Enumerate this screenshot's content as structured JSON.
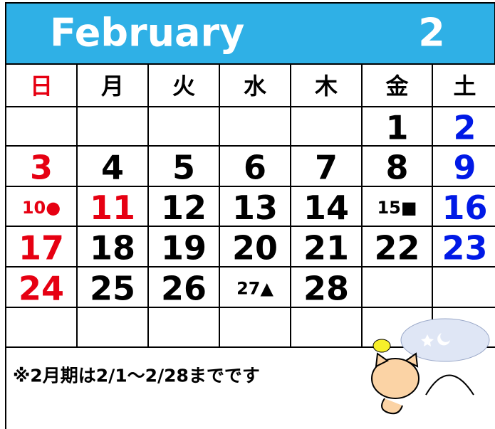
{
  "header": {
    "month": "February",
    "number": "2"
  },
  "weekdays": [
    {
      "text": "日",
      "color": "#e60012"
    },
    {
      "text": "月",
      "color": "#000000"
    },
    {
      "text": "火",
      "color": "#000000"
    },
    {
      "text": "水",
      "color": "#000000"
    },
    {
      "text": "木",
      "color": "#000000"
    },
    {
      "text": "金",
      "color": "#000000"
    },
    {
      "text": "土",
      "color": "#000000"
    }
  ],
  "weeks": [
    [
      null,
      null,
      null,
      null,
      null,
      {
        "text": "1",
        "color": "#000000"
      },
      {
        "text": "2",
        "color": "#0019e6"
      }
    ],
    [
      {
        "text": "3",
        "color": "#e60012"
      },
      {
        "text": "4",
        "color": "#000000"
      },
      {
        "text": "5",
        "color": "#000000"
      },
      {
        "text": "6",
        "color": "#000000"
      },
      {
        "text": "7",
        "color": "#000000"
      },
      {
        "text": "8",
        "color": "#000000"
      },
      {
        "text": "9",
        "color": "#0019e6"
      }
    ],
    [
      {
        "text": "10●",
        "color": "#e60012"
      },
      {
        "text": "11",
        "color": "#e60012"
      },
      {
        "text": "12",
        "color": "#000000"
      },
      {
        "text": "13",
        "color": "#000000"
      },
      {
        "text": "14",
        "color": "#000000"
      },
      {
        "text": "15■",
        "color": "#000000"
      },
      {
        "text": "16",
        "color": "#0019e6"
      }
    ],
    [
      {
        "text": "17",
        "color": "#e60012"
      },
      {
        "text": "18",
        "color": "#000000"
      },
      {
        "text": "19",
        "color": "#000000"
      },
      {
        "text": "20",
        "color": "#000000"
      },
      {
        "text": "21",
        "color": "#000000"
      },
      {
        "text": "22",
        "color": "#000000"
      },
      {
        "text": "23",
        "color": "#0019e6"
      }
    ],
    [
      {
        "text": "24",
        "color": "#e60012"
      },
      {
        "text": "25",
        "color": "#000000"
      },
      {
        "text": "26",
        "color": "#000000"
      },
      {
        "text": "27▲",
        "color": "#000000"
      },
      {
        "text": "28",
        "color": "#000000"
      },
      null,
      null
    ],
    [
      null,
      null,
      null,
      null,
      null,
      null,
      null
    ]
  ],
  "note": "※2月期は2/1～2/28までです"
}
